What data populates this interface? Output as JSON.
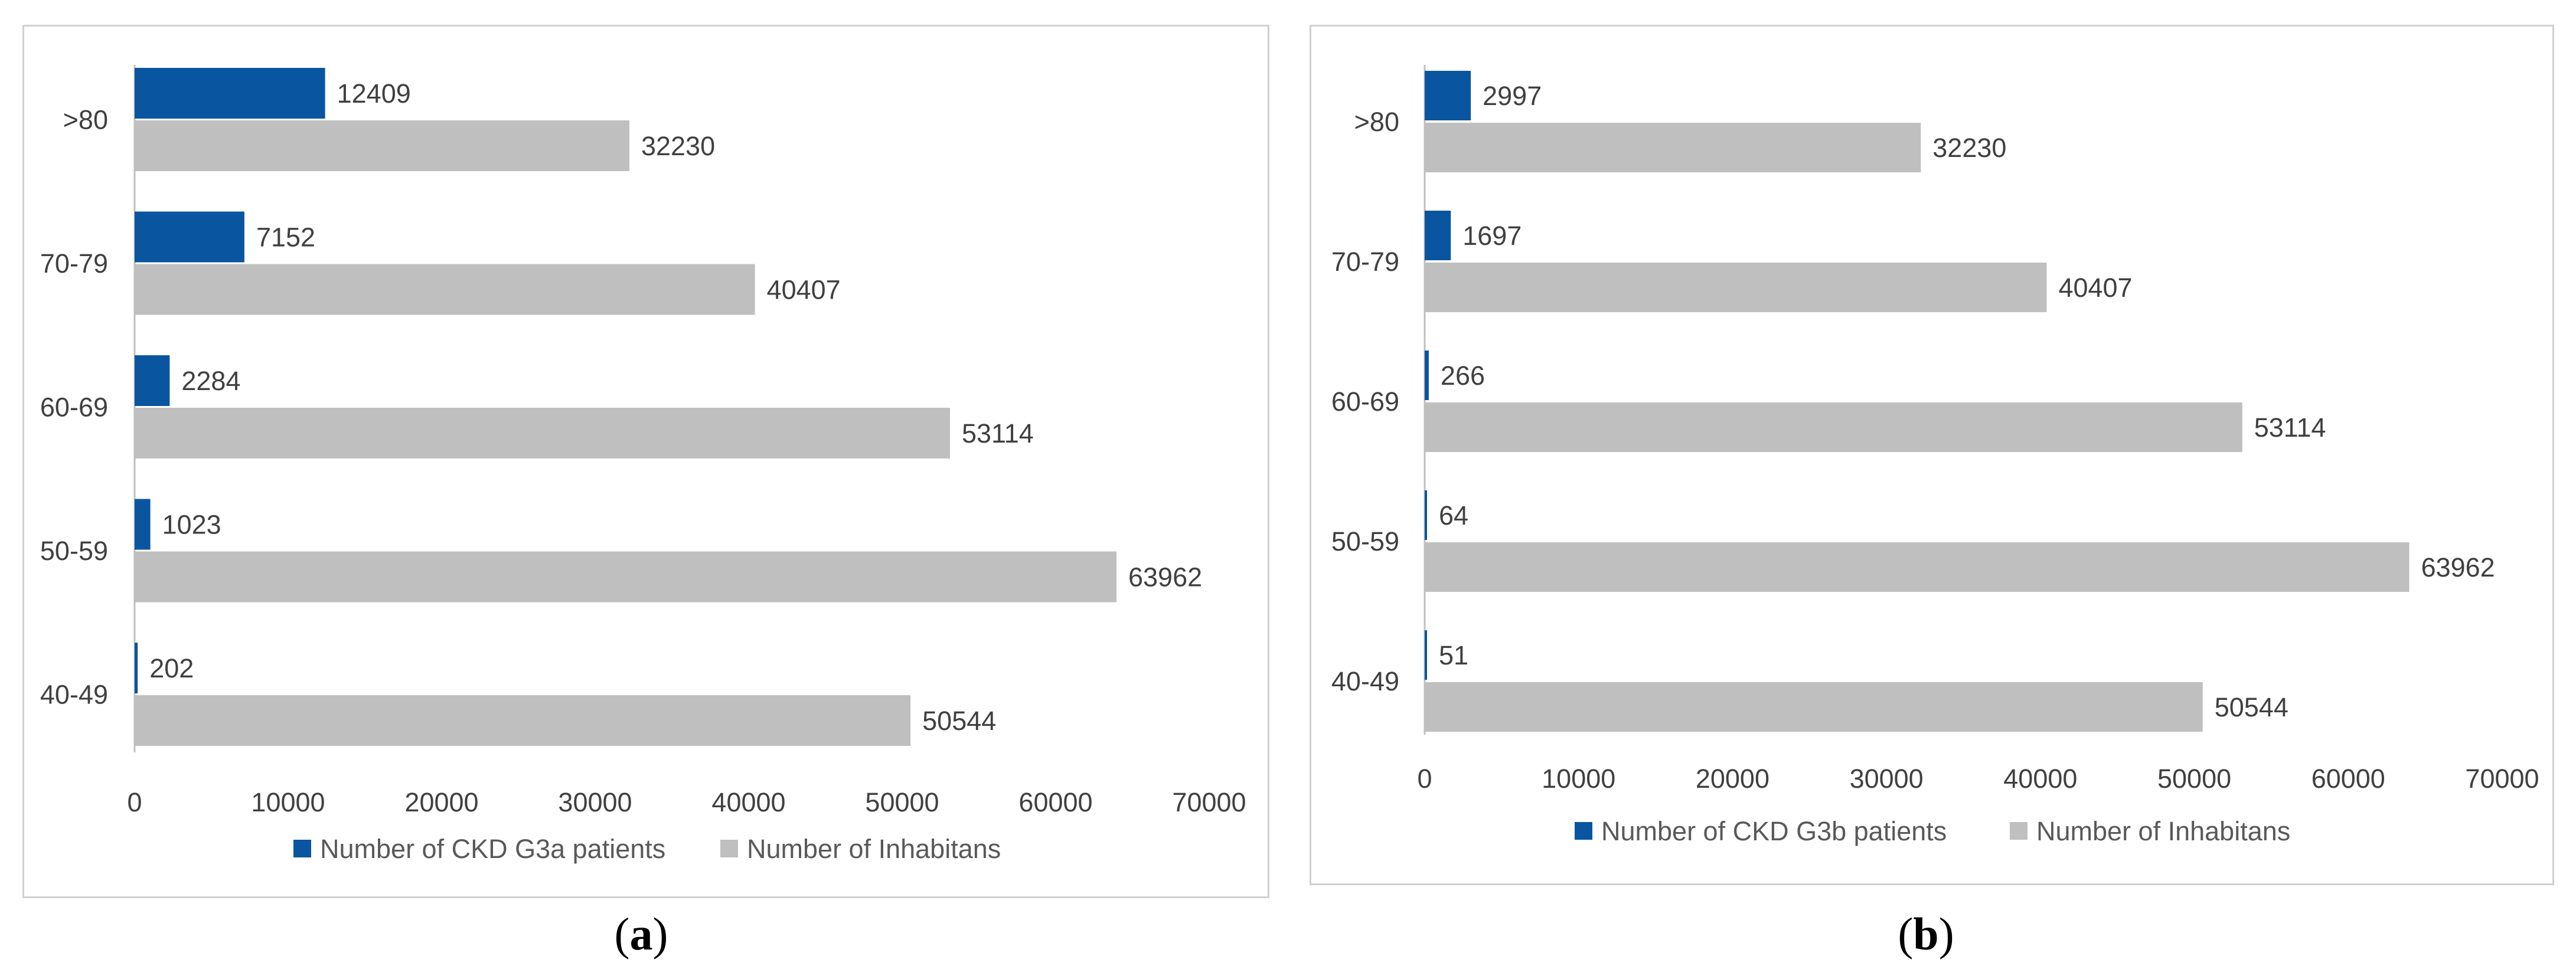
{
  "chart_data": [
    {
      "type": "bar",
      "orientation": "horizontal",
      "categories": [
        "40-49",
        "50-59",
        "60-69",
        "70-79",
        ">80"
      ],
      "series": [
        {
          "name": "Number of CKD G3a patients",
          "values": [
            202,
            1023,
            2284,
            7152,
            12409
          ],
          "color": "#0a559f"
        },
        {
          "name": "Number of Inhabitans",
          "values": [
            50544,
            63962,
            53114,
            40407,
            32230
          ],
          "color": "#bfbfbf"
        }
      ],
      "xlim": [
        0,
        70000
      ],
      "xticks": [
        0,
        10000,
        20000,
        30000,
        40000,
        50000,
        60000,
        70000
      ],
      "legend_position": "bottom",
      "caption_letter": "a"
    },
    {
      "type": "bar",
      "orientation": "horizontal",
      "categories": [
        "40-49",
        "50-59",
        "60-69",
        "70-79",
        ">80"
      ],
      "series": [
        {
          "name": "Number of CKD G3b patients",
          "values": [
            51,
            64,
            266,
            1697,
            2997
          ],
          "color": "#0a559f"
        },
        {
          "name": "Number of Inhabitans",
          "values": [
            50544,
            63962,
            53114,
            40407,
            32230
          ],
          "color": "#bfbfbf"
        }
      ],
      "xlim": [
        0,
        70000
      ],
      "xticks": [
        0,
        10000,
        20000,
        30000,
        40000,
        50000,
        60000,
        70000
      ],
      "legend_position": "bottom",
      "caption_letter": "b"
    }
  ],
  "captions": {
    "a": {
      "open": "(",
      "letter": "a",
      "close": ")"
    },
    "b": {
      "open": "(",
      "letter": "b",
      "close": ")"
    }
  },
  "colors": {
    "patients": "#0a559f",
    "inhabitants": "#bfbfbf",
    "axis": "#bfbfbf",
    "frame": "#d0d0d0"
  }
}
